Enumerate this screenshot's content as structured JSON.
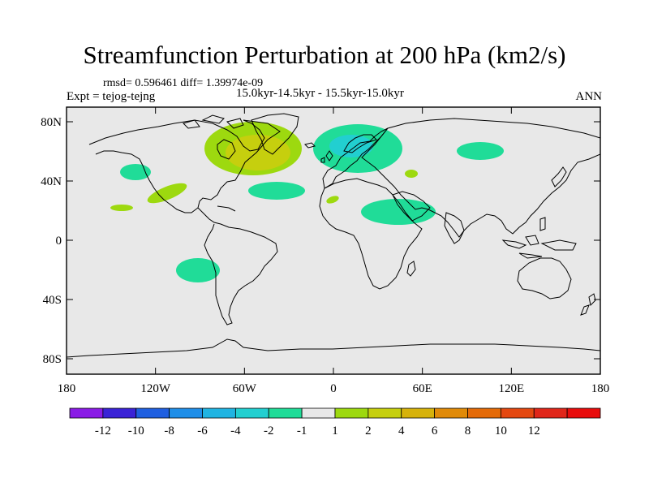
{
  "title": "Streamfunction Perturbation at 200 hPa (km2/s)",
  "stats": "rmsd= 0.596461 diff= 1.39974e-09",
  "experiment": "Expt = tejog-tejng",
  "period": "15.0kyr-14.5kyr - 15.5kyr-15.0kyr",
  "season": "ANN",
  "map": {
    "ocean_color": "#e8e8e8",
    "lat_labels": [
      "80N",
      "40N",
      "0",
      "40S",
      "80S"
    ],
    "lon_labels": [
      "180",
      "120W",
      "60W",
      "0",
      "60E",
      "120E",
      "180"
    ]
  },
  "colorbar": {
    "colors": [
      "#8a1be6",
      "#3a22d6",
      "#1f5fe0",
      "#1f8ee8",
      "#20b4e2",
      "#22cfd0",
      "#20dc98",
      "#e8e8e8",
      "#9dd90f",
      "#c6cf0e",
      "#d6b20b",
      "#e08a08",
      "#e46a07",
      "#e44810",
      "#e0261a",
      "#e80c0c"
    ],
    "labels": [
      "-12",
      "-10",
      "-8",
      "-6",
      "-4",
      "-2",
      "-1",
      "1",
      "2",
      "4",
      "6",
      "8",
      "10",
      "12"
    ]
  }
}
